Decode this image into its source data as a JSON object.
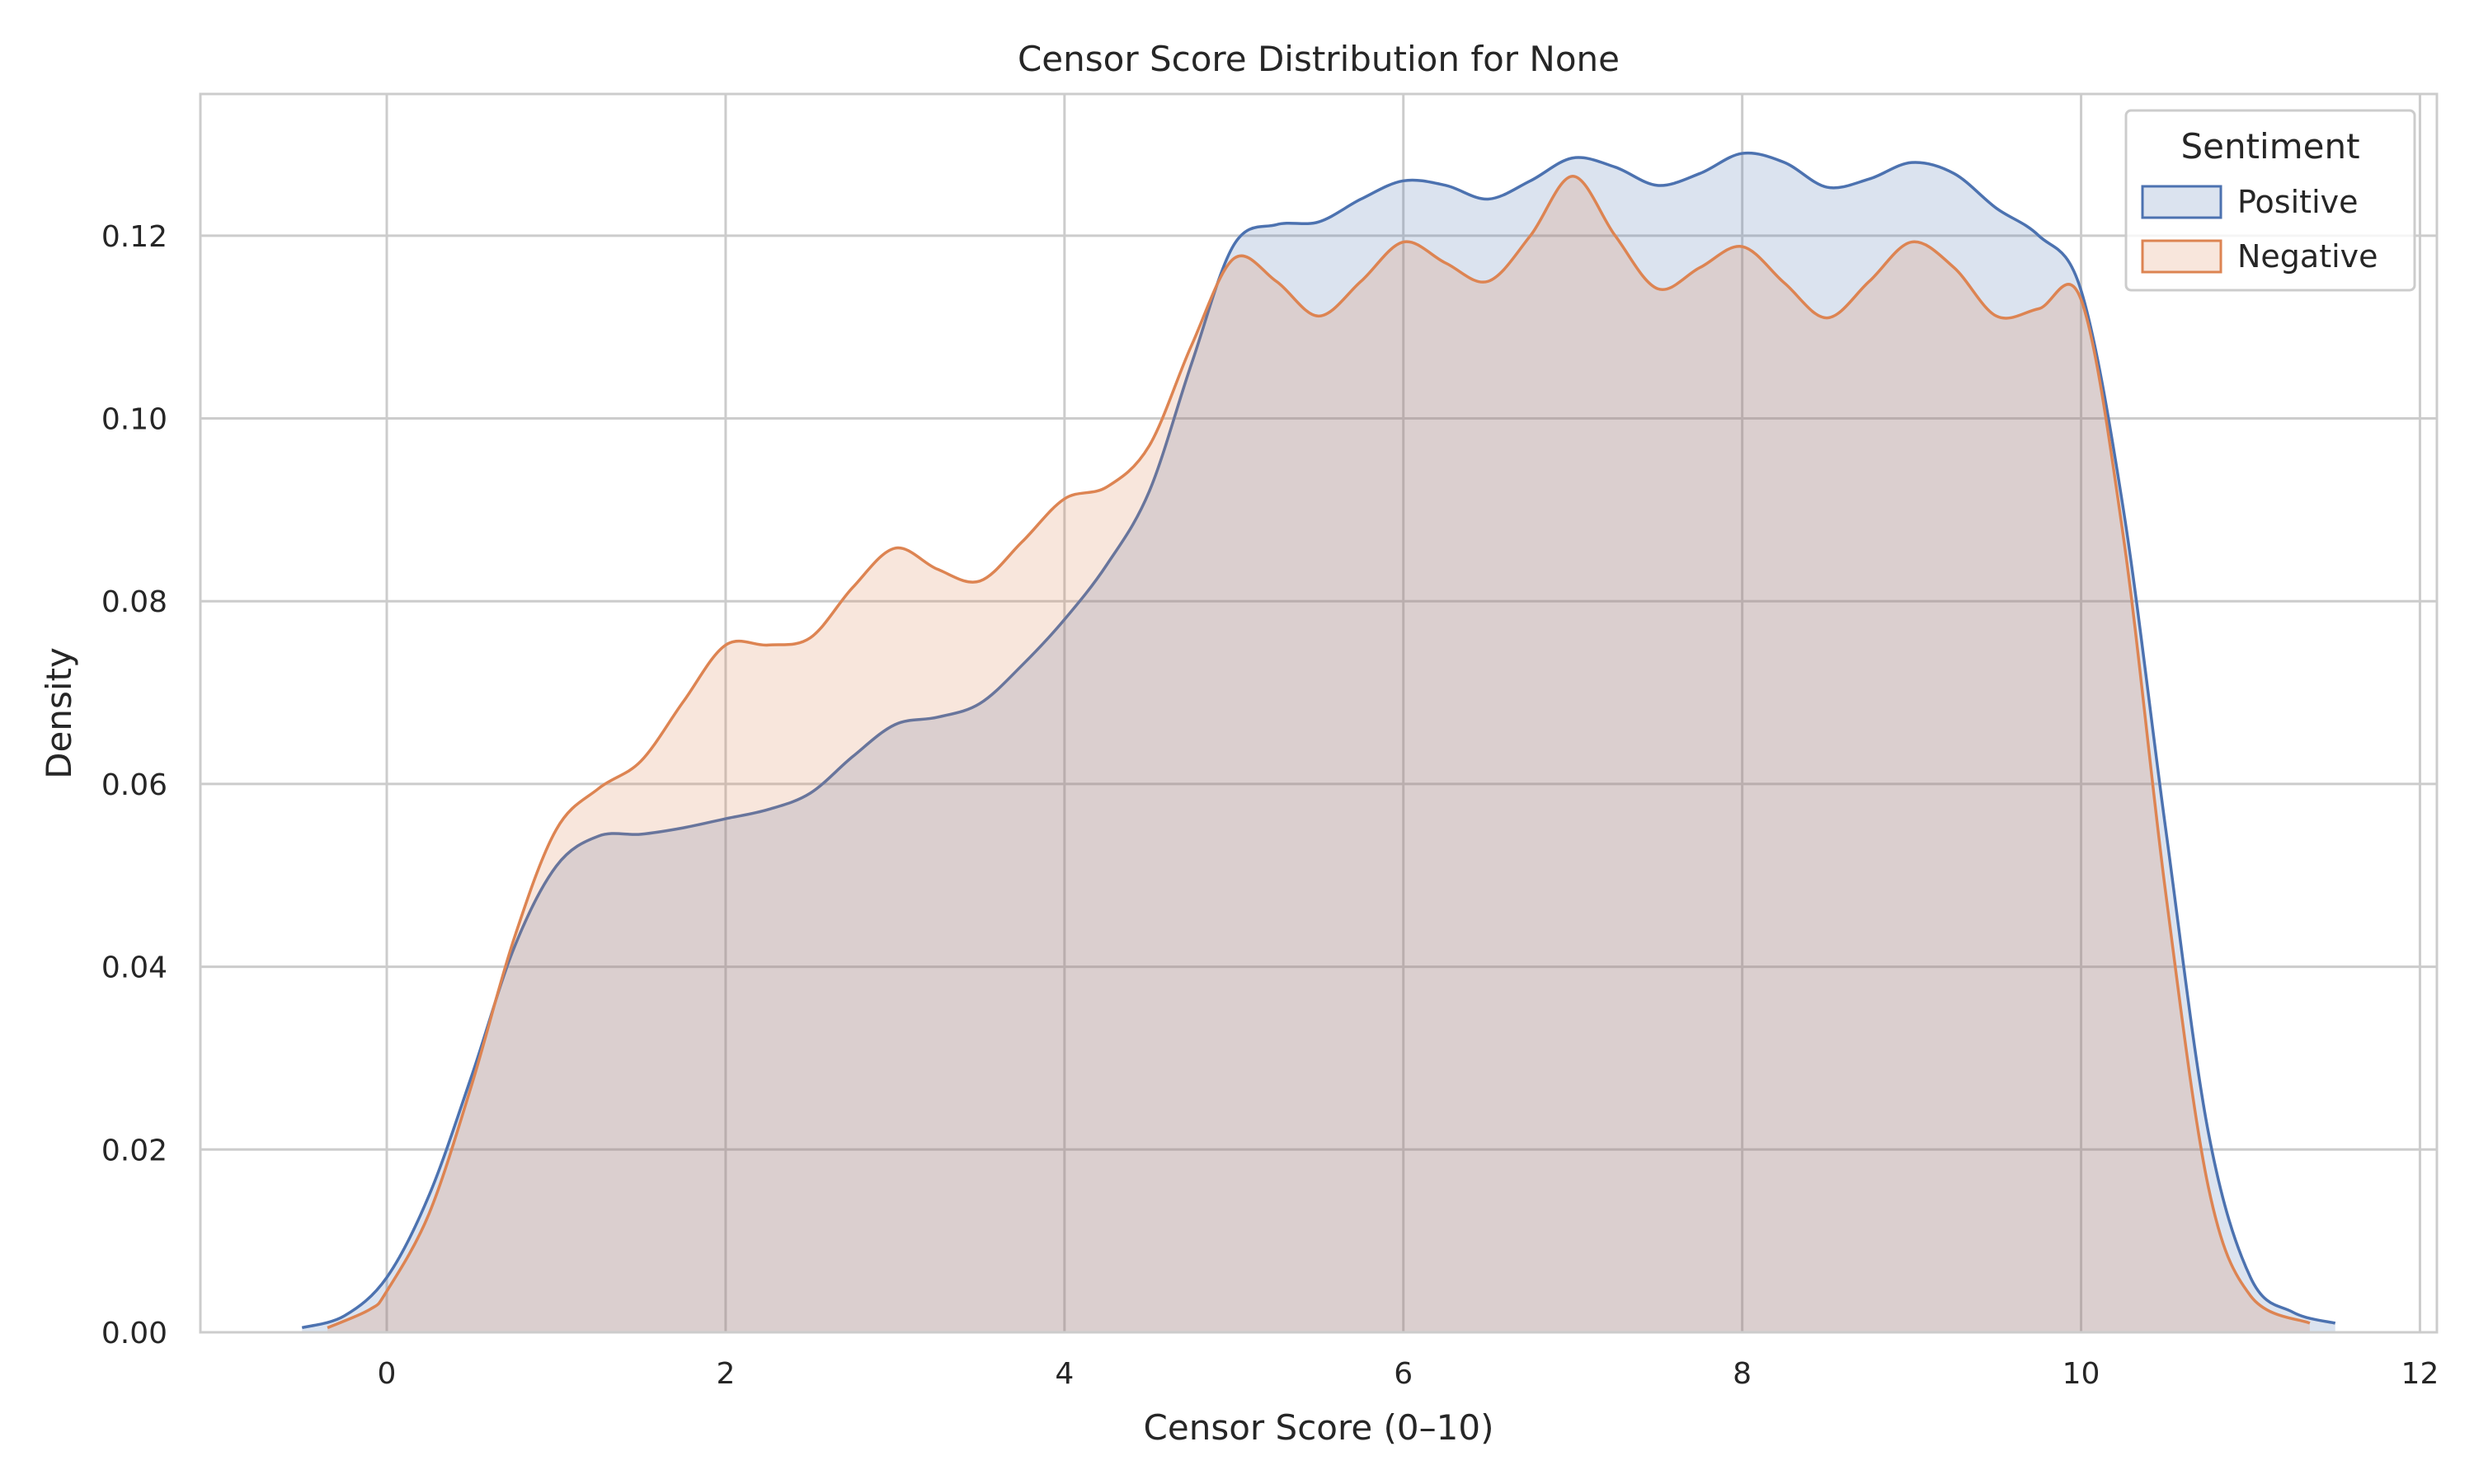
{
  "chart_data": {
    "type": "area",
    "title": "Censor Score Distribution for None",
    "xlabel": "Censor Score (0–10)",
    "ylabel": "Density",
    "xlim": [
      -1.1,
      12.1
    ],
    "ylim": [
      0.0,
      0.1355
    ],
    "xticks": [
      0,
      2,
      4,
      6,
      8,
      10,
      12
    ],
    "yticks": [
      0.0,
      0.02,
      0.04,
      0.06,
      0.08,
      0.1,
      0.12
    ],
    "xtick_labels": [
      "0",
      "2",
      "4",
      "6",
      "8",
      "10",
      "12"
    ],
    "ytick_labels": [
      "0.00",
      "0.02",
      "0.04",
      "0.06",
      "0.08",
      "0.10",
      "0.12"
    ],
    "grid": true,
    "legend": {
      "title": "Sentiment",
      "placement": "top-right"
    },
    "series": [
      {
        "name": "Positive",
        "color": "#4c72b0",
        "fill_opacity": 0.2,
        "x": [
          -0.5,
          -0.25,
          0,
          0.25,
          0.5,
          0.75,
          1.0,
          1.25,
          1.5,
          1.75,
          2.0,
          2.25,
          2.5,
          2.75,
          3.0,
          3.25,
          3.5,
          3.75,
          4.0,
          4.25,
          4.5,
          4.75,
          5.0,
          5.25,
          5.5,
          5.75,
          6.0,
          6.25,
          6.5,
          6.75,
          7.0,
          7.25,
          7.5,
          7.75,
          8.0,
          8.25,
          8.5,
          8.75,
          9.0,
          9.25,
          9.5,
          9.75,
          10.0,
          10.25,
          10.5,
          10.75,
          11.0,
          11.25,
          11.5
        ],
        "y": [
          0.0005,
          0.0018,
          0.006,
          0.015,
          0.028,
          0.042,
          0.051,
          0.0543,
          0.0545,
          0.0552,
          0.0562,
          0.0572,
          0.059,
          0.063,
          0.0665,
          0.0673,
          0.0688,
          0.073,
          0.078,
          0.084,
          0.092,
          0.106,
          0.119,
          0.1212,
          0.1215,
          0.124,
          0.126,
          0.1255,
          0.124,
          0.126,
          0.1285,
          0.1275,
          0.1255,
          0.1268,
          0.129,
          0.128,
          0.1253,
          0.1262,
          0.128,
          0.1268,
          0.123,
          0.12,
          0.114,
          0.09,
          0.055,
          0.022,
          0.006,
          0.0022,
          0.001
        ]
      },
      {
        "name": "Negative",
        "color": "#dd8452",
        "fill_opacity": 0.2,
        "x": [
          -0.35,
          -0.1,
          0,
          0.25,
          0.5,
          0.75,
          1.0,
          1.25,
          1.5,
          1.75,
          2.0,
          2.25,
          2.5,
          2.75,
          3.0,
          3.25,
          3.5,
          3.75,
          4.0,
          4.25,
          4.5,
          4.75,
          5.0,
          5.25,
          5.5,
          5.75,
          6.0,
          6.25,
          6.5,
          6.75,
          7.0,
          7.25,
          7.5,
          7.75,
          8.0,
          8.25,
          8.5,
          8.75,
          9.0,
          9.25,
          9.5,
          9.75,
          10.0,
          10.25,
          10.5,
          10.75,
          11.0,
          11.35
        ],
        "y": [
          0.0005,
          0.0025,
          0.0045,
          0.013,
          0.027,
          0.043,
          0.055,
          0.0595,
          0.0625,
          0.069,
          0.0752,
          0.0752,
          0.076,
          0.0815,
          0.0858,
          0.0835,
          0.0822,
          0.0865,
          0.0912,
          0.0925,
          0.097,
          0.108,
          0.1175,
          0.115,
          0.1112,
          0.115,
          0.1193,
          0.117,
          0.115,
          0.12,
          0.1265,
          0.12,
          0.1142,
          0.1165,
          0.1188,
          0.1148,
          0.111,
          0.115,
          0.1193,
          0.1165,
          0.1112,
          0.112,
          0.113,
          0.087,
          0.048,
          0.016,
          0.004,
          0.001
        ]
      }
    ]
  }
}
